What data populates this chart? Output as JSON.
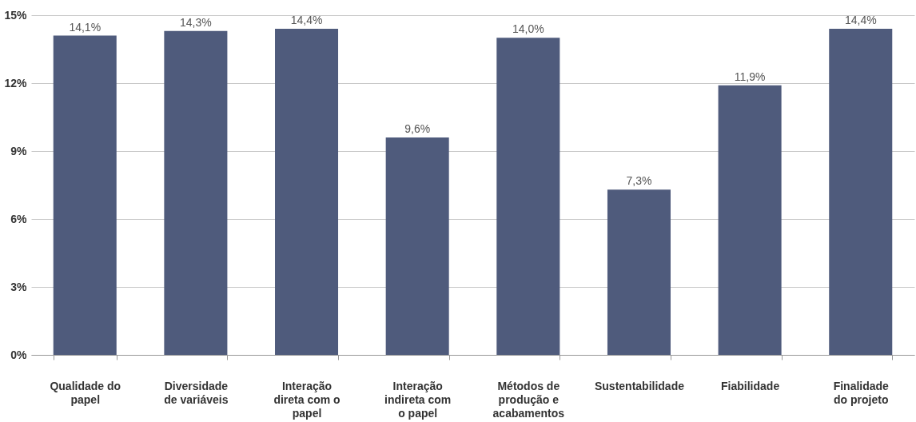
{
  "chart_data": {
    "type": "bar",
    "categories": [
      "Qualidade do papel",
      "Diversidade de variáveis",
      "Interação direta com o papel",
      "Interação indireta com o papel",
      "Métodos de produção e acabamentos",
      "Sustentabilidade",
      "Fiabilidade",
      "Finalidade do projeto"
    ],
    "values": [
      14.1,
      14.3,
      14.4,
      9.6,
      14.0,
      7.3,
      11.9,
      14.4
    ],
    "value_labels": [
      "14,1%",
      "14,3%",
      "14,4%",
      "9,6%",
      "14,0%",
      "7,3%",
      "11,9%",
      "14,4%"
    ],
    "color": "#4f5b7c",
    "ylim": [
      0,
      15
    ],
    "yticks": [
      {
        "value": 0,
        "label": "0%"
      },
      {
        "value": 3,
        "label": "3%"
      },
      {
        "value": 6,
        "label": "6%"
      },
      {
        "value": 9,
        "label": "9%"
      },
      {
        "value": 12,
        "label": "12%"
      },
      {
        "value": 15,
        "label": "15%"
      }
    ],
    "grid": "y"
  }
}
